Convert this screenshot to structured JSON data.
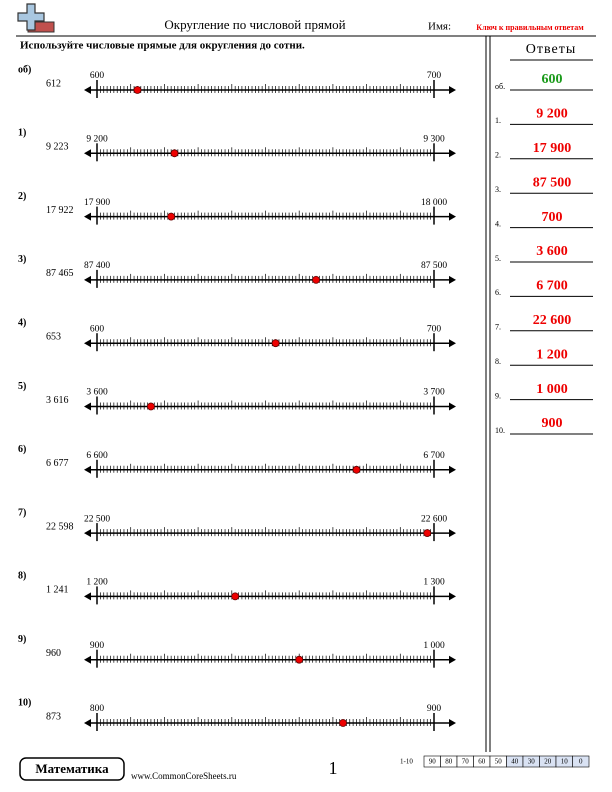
{
  "header": {
    "title": "Округление по числовой прямой",
    "name_label": "Имя:",
    "key": "Ключ к правильным ответам"
  },
  "instructions": "Используйте числовые прямые для округления до сотни.",
  "problems": [
    {
      "label": "об)",
      "number": {
        "value": 612,
        "label": "612"
      },
      "start": {
        "value": 600,
        "label": "600"
      },
      "end": {
        "value": 700,
        "label": "700"
      }
    },
    {
      "label": "1)",
      "number": {
        "value": 9223,
        "label": "9 223"
      },
      "start": {
        "value": 9200,
        "label": "9 200"
      },
      "end": {
        "value": 9300,
        "label": "9 300"
      }
    },
    {
      "label": "2)",
      "number": {
        "value": 17922,
        "label": "17 922"
      },
      "start": {
        "value": 17900,
        "label": "17 900"
      },
      "end": {
        "value": 18000,
        "label": "18 000"
      }
    },
    {
      "label": "3)",
      "number": {
        "value": 87465,
        "label": "87 465"
      },
      "start": {
        "value": 87400,
        "label": "87 400"
      },
      "end": {
        "value": 87500,
        "label": "87 500"
      }
    },
    {
      "label": "4)",
      "number": {
        "value": 653,
        "label": "653"
      },
      "start": {
        "value": 600,
        "label": "600"
      },
      "end": {
        "value": 700,
        "label": "700"
      }
    },
    {
      "label": "5)",
      "number": {
        "value": 3616,
        "label": "3 616"
      },
      "start": {
        "value": 3600,
        "label": "3 600"
      },
      "end": {
        "value": 3700,
        "label": "3 700"
      }
    },
    {
      "label": "6)",
      "number": {
        "value": 6677,
        "label": "6 677"
      },
      "start": {
        "value": 6600,
        "label": "6 600"
      },
      "end": {
        "value": 6700,
        "label": "6 700"
      }
    },
    {
      "label": "7)",
      "number": {
        "value": 22598,
        "label": "22 598"
      },
      "start": {
        "value": 22500,
        "label": "22 500"
      },
      "end": {
        "value": 22600,
        "label": "22 600"
      }
    },
    {
      "label": "8)",
      "number": {
        "value": 1241,
        "label": "1 241"
      },
      "start": {
        "value": 1200,
        "label": "1 200"
      },
      "end": {
        "value": 1300,
        "label": "1 300"
      }
    },
    {
      "label": "9)",
      "number": {
        "value": 960,
        "label": "960"
      },
      "start": {
        "value": 900,
        "label": "900"
      },
      "end": {
        "value": 1000,
        "label": "1 000"
      }
    },
    {
      "label": "10)",
      "number": {
        "value": 873,
        "label": "873"
      },
      "start": {
        "value": 800,
        "label": "800"
      },
      "end": {
        "value": 900,
        "label": "900"
      }
    }
  ],
  "answers": {
    "title": "Ответы",
    "items": [
      {
        "label": "об.",
        "value": "600"
      },
      {
        "label": "1.",
        "value": "9 200"
      },
      {
        "label": "2.",
        "value": "17 900"
      },
      {
        "label": "3.",
        "value": "87 500"
      },
      {
        "label": "4.",
        "value": "700"
      },
      {
        "label": "5.",
        "value": "3 600"
      },
      {
        "label": "6.",
        "value": "6 700"
      },
      {
        "label": "7.",
        "value": "22 600"
      },
      {
        "label": "8.",
        "value": "1 200"
      },
      {
        "label": "9.",
        "value": "1 000"
      },
      {
        "label": "10.",
        "value": "900"
      }
    ]
  },
  "footer": {
    "brand": "Математика",
    "site": "www.CommonCoreSheets.ru",
    "page": 1,
    "score_label": "1-10",
    "scores": [
      90,
      80,
      70,
      60,
      50,
      40,
      30,
      20,
      10,
      0
    ]
  }
}
